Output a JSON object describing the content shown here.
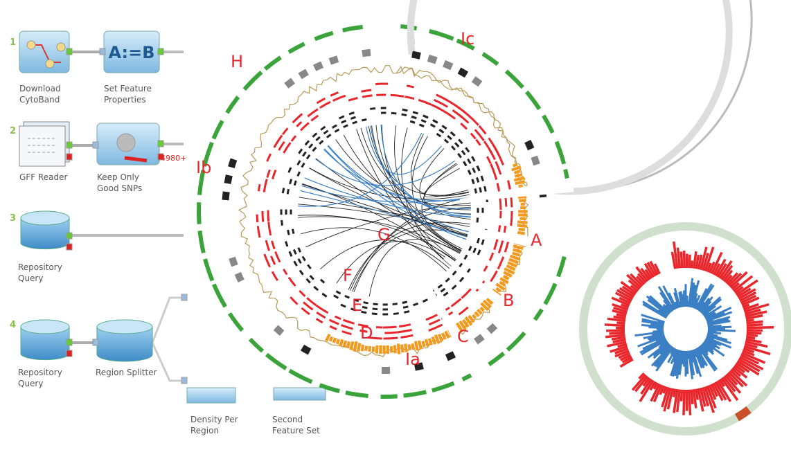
{
  "workflow": {
    "steps": [
      "1",
      "2",
      "3",
      "4"
    ],
    "nodes": [
      {
        "label": "Download CytoBand"
      },
      {
        "label": "Set Feature Properties",
        "icon_text": "A:=B"
      },
      {
        "label": "GFF Reader"
      },
      {
        "label": "Keep Only Good SNPs",
        "port_label": "4980+"
      },
      {
        "label": "Repository Query"
      },
      {
        "label": "Repository Query"
      },
      {
        "label": "Region Splitter"
      },
      {
        "label": "Density Per Region"
      },
      {
        "label": "Second Feature Set"
      }
    ]
  },
  "circos": {
    "labels": [
      "Ic",
      "H",
      "Ib",
      "A",
      "B",
      "C",
      "D",
      "E",
      "F",
      "G",
      "Ia"
    ]
  }
}
